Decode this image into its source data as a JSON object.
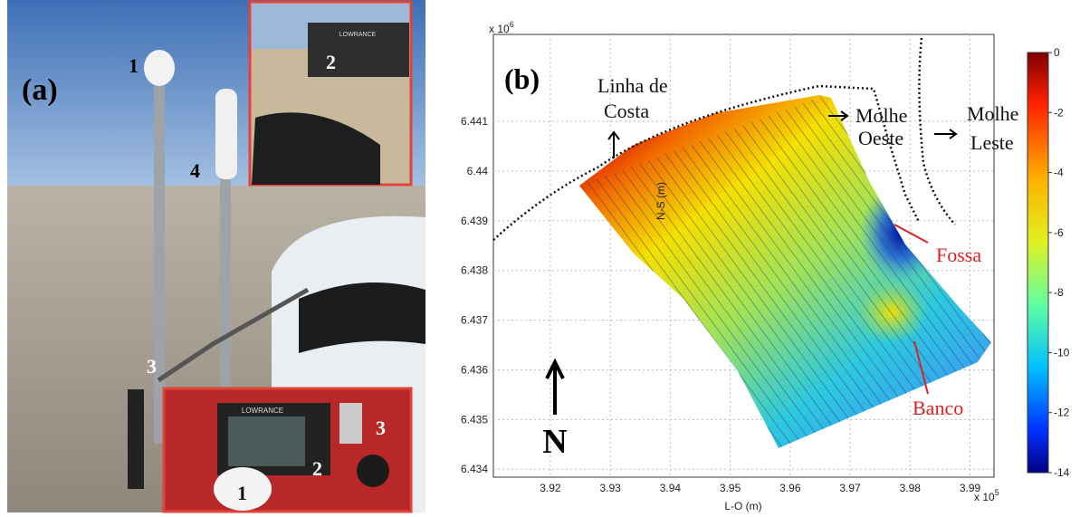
{
  "panel_a": {
    "label": "(a)",
    "markers": [
      "1",
      "4",
      "3"
    ],
    "inset_top": {
      "marker": "2",
      "brand": "LOWRANCE"
    },
    "inset_bottom": {
      "markers": [
        "2",
        "3",
        "1"
      ],
      "brand": "LOWRANCE"
    }
  },
  "panel_b": {
    "label": "(b)",
    "x_label": "L-O (m)",
    "y_label": "N-S (m)",
    "x_multiplier": {
      "base": "x 10",
      "exponent": "5"
    },
    "y_multiplier": {
      "base": "x 10",
      "exponent": "6"
    },
    "xlim": [
      3.9105,
      3.994
    ],
    "ylim": [
      6.43384,
      6.44275
    ],
    "xticks": [
      3.92,
      3.93,
      3.94,
      3.95,
      3.96,
      3.97,
      3.98,
      3.99
    ],
    "yticks": [
      6.434,
      6.435,
      6.436,
      6.437,
      6.438,
      6.439,
      6.44,
      6.441
    ],
    "grid": true,
    "colorbar": {
      "lim": [
        -14,
        0
      ],
      "ticks": [
        0,
        -2,
        -4,
        -6,
        -8,
        -10,
        -12,
        -14
      ]
    },
    "annotations": {
      "coast": [
        "Linha de",
        "Costa"
      ],
      "west_jetty": [
        "Molhe",
        "Oeste"
      ],
      "east_jetty": [
        "Molhe",
        "Leste"
      ],
      "trench": "Fossa",
      "bank": "Banco",
      "north": "N"
    }
  }
}
